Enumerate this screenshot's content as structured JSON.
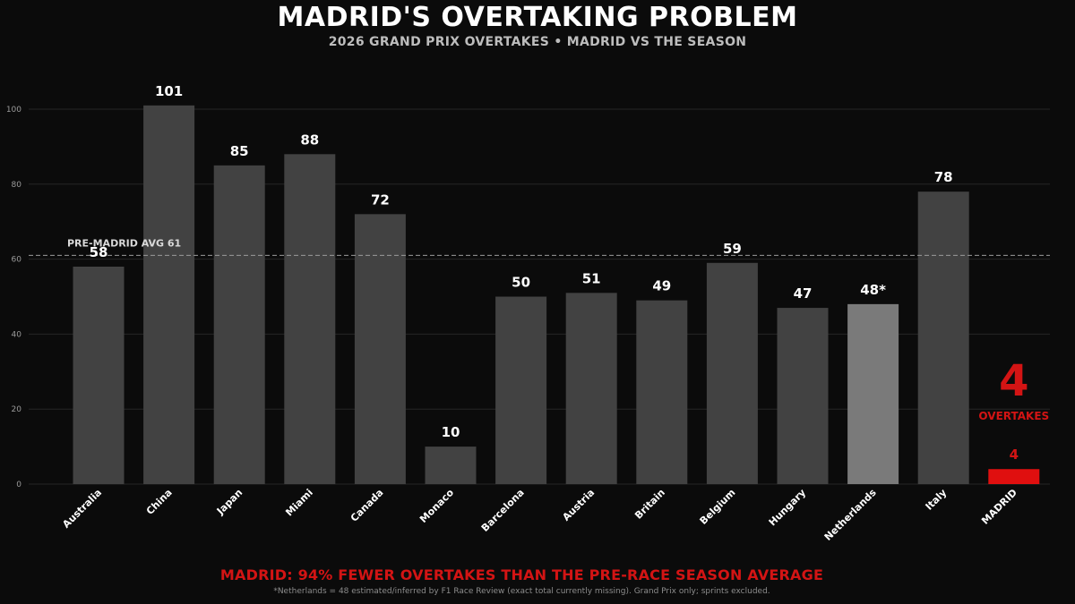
{
  "header": {
    "title": "MADRID'S OVERTAKING PROBLEM",
    "subtitle": "2026 GRAND PRIX OVERTAKES • MADRID VS THE SEASON"
  },
  "footer": {
    "headline": "MADRID: 94% FEWER OVERTAKES THAN THE PRE-RACE SEASON AVERAGE",
    "note": "*Netherlands = 48 estimated/inferred by F1 Race Review (exact total currently missing). Grand Prix only; sprints excluded."
  },
  "chart_data": {
    "type": "bar",
    "title": "MADRID'S OVERTAKING PROBLEM",
    "subtitle": "2026 GRAND PRIX OVERTAKES • MADRID VS THE SEASON",
    "categories": [
      "Australia",
      "China",
      "Japan",
      "Miami",
      "Canada",
      "Monaco",
      "Barcelona",
      "Austria",
      "Britain",
      "Belgium",
      "Hungary",
      "Netherlands",
      "Italy",
      "MADRID"
    ],
    "values": [
      58,
      101,
      85,
      88,
      72,
      10,
      50,
      51,
      49,
      59,
      47,
      48,
      78,
      4
    ],
    "value_labels": [
      "58",
      "101",
      "85",
      "88",
      "72",
      "10",
      "50",
      "51",
      "49",
      "59",
      "47",
      "48*",
      "78",
      "4"
    ],
    "ylim": [
      0,
      110
    ],
    "yticks": [
      0,
      20,
      40,
      60,
      80,
      100
    ],
    "xlabel": "",
    "ylabel": "",
    "grid": true,
    "reference_line": {
      "value": 61,
      "label": "PRE-MADRID AVG  61"
    },
    "callout": {
      "value": "4",
      "label": "OVERTAKES"
    },
    "colors": {
      "bar": "#424242",
      "bar_estimated": "#7a7a7a",
      "bar_highlight": "#e00f0f",
      "highlight_text": "#d31414",
      "grid": "#262626",
      "avg_line": "#9a9a9a"
    }
  }
}
